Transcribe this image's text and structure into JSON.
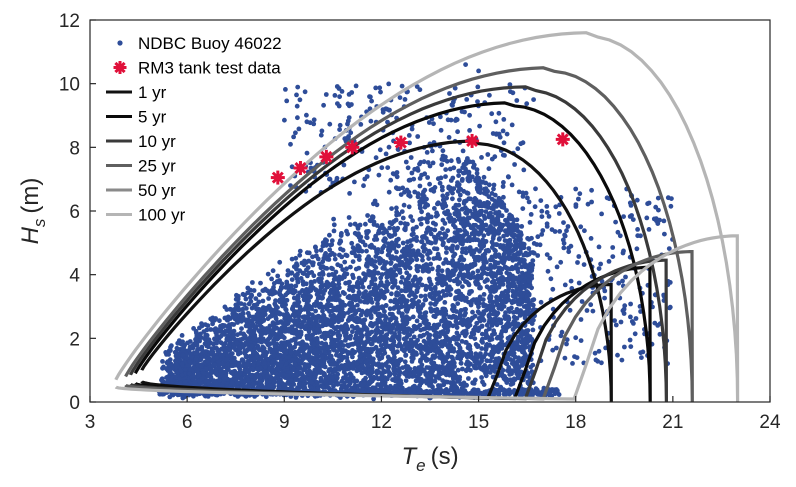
{
  "chart_data": {
    "type": "scatter",
    "xlabel": {
      "symbol": "T",
      "subscript": "e",
      "unit": "(s)"
    },
    "ylabel": {
      "symbol": "H",
      "subscript": "s",
      "unit": "(m)"
    },
    "xlim": [
      3,
      24
    ],
    "ylim": [
      0,
      12
    ],
    "xticks": [
      "3",
      "6",
      "9",
      "12",
      "15",
      "18",
      "21",
      "24"
    ],
    "yticks": [
      "0",
      "2",
      "4",
      "6",
      "8",
      "10",
      "12"
    ],
    "grid": false,
    "legend_position": "top-left",
    "colors": {
      "scatter": "#2e4d99",
      "tank": "#e0103a",
      "contours": [
        "#111111",
        "#0a0a0a",
        "#3a3a3a",
        "#5f5f5f",
        "#8a8a8a",
        "#b5b5b5"
      ]
    },
    "series": [
      {
        "name": "NDBC Buoy 46022",
        "kind": "scatter",
        "approx_point_count": 60000,
        "note_hull_points": [
          [
            4.4,
            0.5
          ],
          [
            6,
            0.2
          ],
          [
            9,
            0.15
          ],
          [
            12,
            0.2
          ],
          [
            15,
            0.4
          ],
          [
            17,
            1.0
          ],
          [
            18,
            2.5
          ],
          [
            19,
            4.5
          ],
          [
            19.5,
            6.8
          ],
          [
            17,
            8.5
          ],
          [
            15,
            9.2
          ],
          [
            14.5,
            10.6
          ],
          [
            12,
            9.0
          ],
          [
            10,
            8.2
          ],
          [
            8,
            6.5
          ],
          [
            6,
            4.0
          ],
          [
            4.5,
            1.6
          ]
        ]
      },
      {
        "name": "RM3 tank test data",
        "kind": "marker",
        "x": [
          8.8,
          9.5,
          10.3,
          11.1,
          12.6,
          14.8,
          17.6
        ],
        "y": [
          7.05,
          7.35,
          7.7,
          8.0,
          8.15,
          8.2,
          8.25
        ]
      },
      {
        "name": "1 yr",
        "kind": "contour",
        "te_min": 4.6,
        "te_max": 19.1,
        "hs_peak": 8.2,
        "te_at_peak": 14.9,
        "hs_at_te_min": 1.0
      },
      {
        "name": "5 yr",
        "kind": "contour",
        "te_min": 4.4,
        "te_max": 20.3,
        "hs_peak": 9.4,
        "te_at_peak": 16.0,
        "hs_at_te_min": 0.9
      },
      {
        "name": "10 yr",
        "kind": "contour",
        "te_min": 4.25,
        "te_max": 20.8,
        "hs_peak": 9.9,
        "te_at_peak": 16.5,
        "hs_at_te_min": 0.85
      },
      {
        "name": "25 yr",
        "kind": "contour",
        "te_min": 4.1,
        "te_max": 21.6,
        "hs_peak": 10.5,
        "te_at_peak": 17.2,
        "hs_at_te_min": 0.8
      },
      {
        "name": "50 yr",
        "kind": "contour",
        "te_min": 3.95,
        "te_max": 22.2,
        "hs_peak": 11.0,
        "te_at_peak": 17.7,
        "hs_at_te_min": 0.75
      },
      {
        "name": "100 yr",
        "kind": "contour",
        "te_min": 3.8,
        "te_max": 23.0,
        "hs_peak": 11.6,
        "te_at_peak": 18.4,
        "hs_at_te_min": 0.7
      }
    ]
  }
}
